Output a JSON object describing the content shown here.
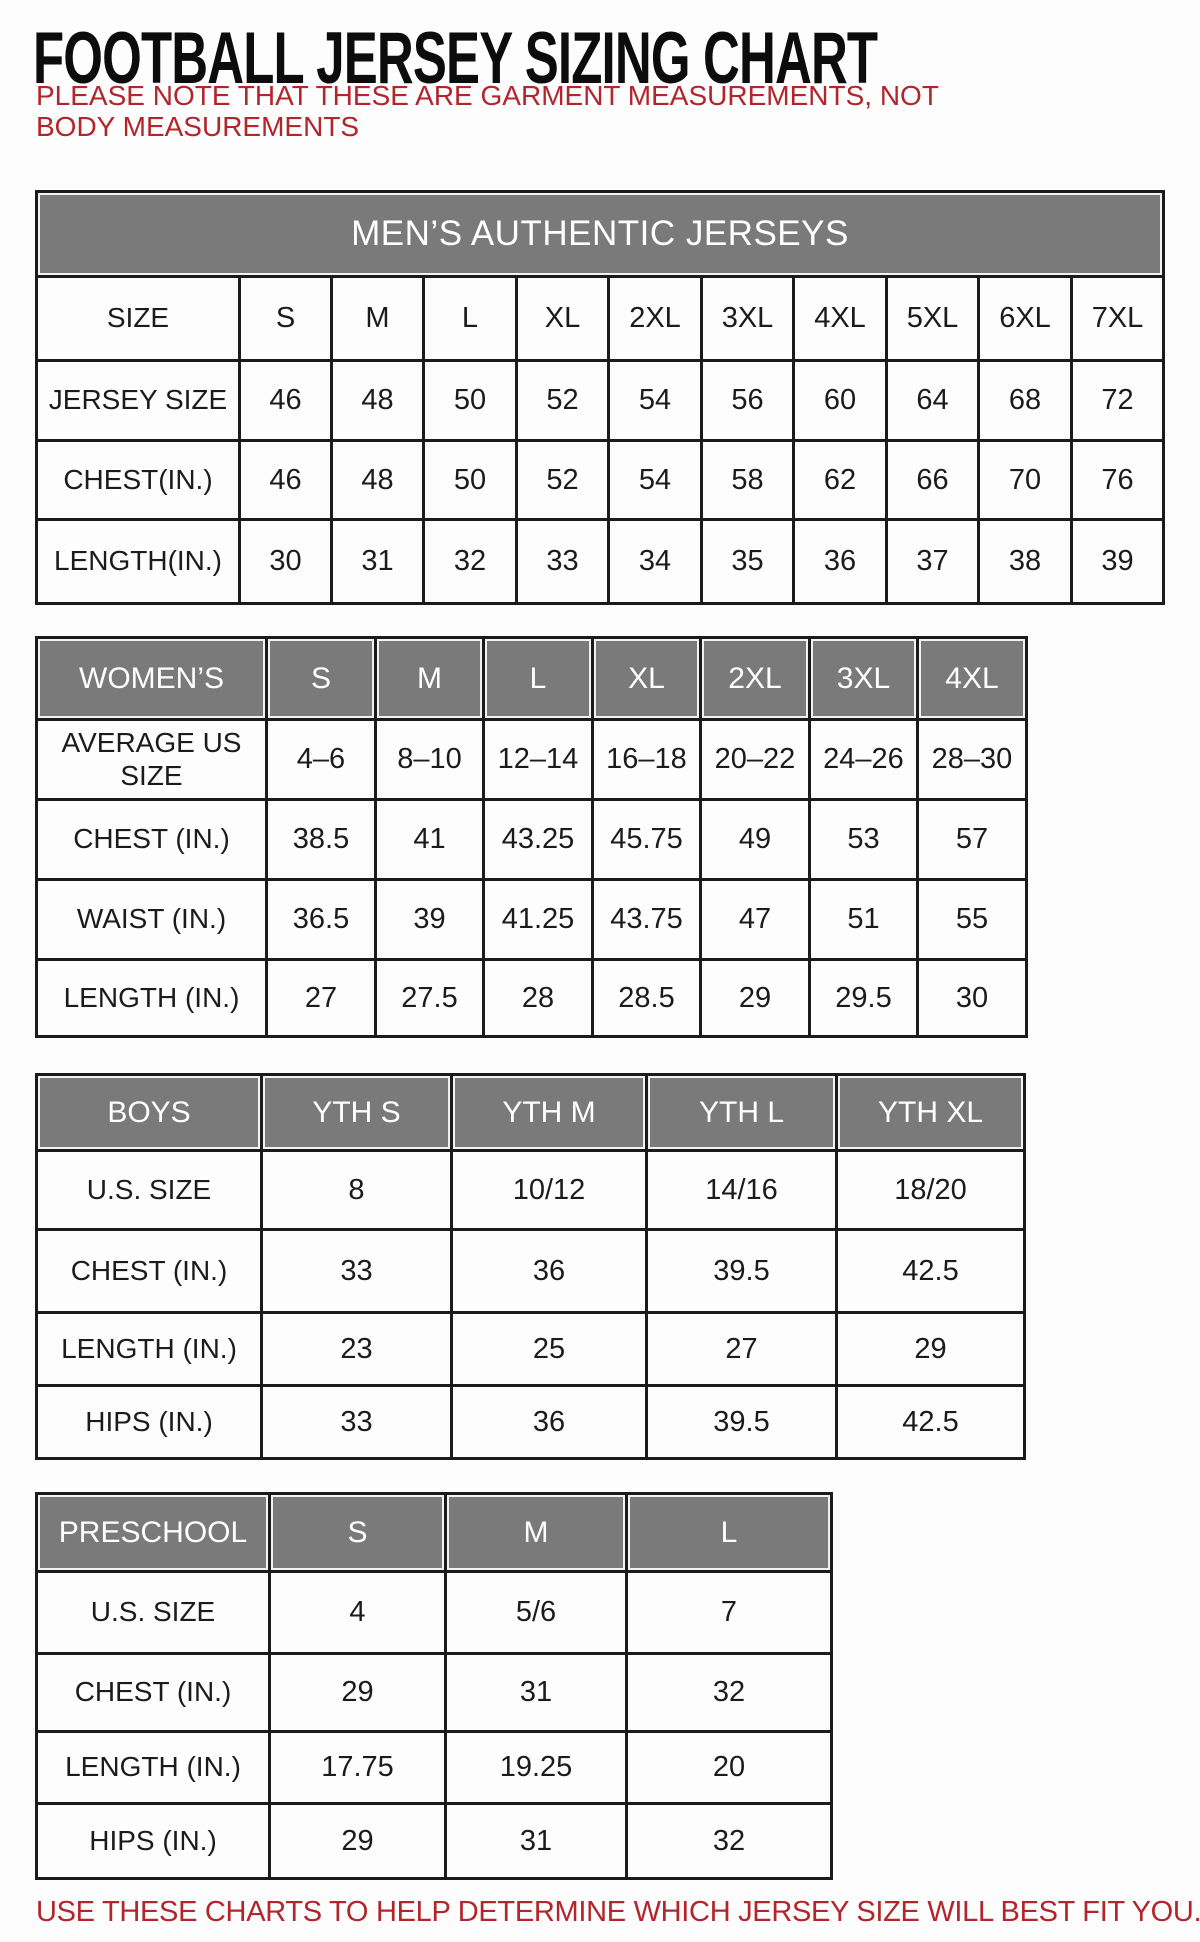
{
  "page": {
    "title": "FOOTBALL JERSEY SIZING CHART",
    "note": "PLEASE NOTE THAT THESE ARE GARMENT MEASUREMENTS, NOT BODY MEASUREMENTS",
    "footer": "USE THESE CHARTS TO HELP DETERMINE WHICH JERSEY SIZE WILL BEST FIT YOU."
  },
  "colors": {
    "header_gray": "#7a7a7a",
    "accent_red": "#b2252b",
    "border_black": "#1b1b1b"
  },
  "tables": {
    "mens": {
      "banner": "MEN’S AUTHENTIC JERSEYS",
      "rows": [
        [
          "SIZE",
          "S",
          "M",
          "L",
          "XL",
          "2XL",
          "3XL",
          "4XL",
          "5XL",
          "6XL",
          "7XL"
        ],
        [
          "JERSEY SIZE",
          "46",
          "48",
          "50",
          "52",
          "54",
          "56",
          "60",
          "64",
          "68",
          "72"
        ],
        [
          "CHEST(IN.)",
          "46",
          "48",
          "50",
          "52",
          "54",
          "58",
          "62",
          "66",
          "70",
          "76"
        ],
        [
          "LENGTH(IN.)",
          "30",
          "31",
          "32",
          "33",
          "34",
          "35",
          "36",
          "37",
          "38",
          "39"
        ]
      ]
    },
    "womens": {
      "header": [
        "WOMEN’S",
        "S",
        "M",
        "L",
        "XL",
        "2XL",
        "3XL",
        "4XL"
      ],
      "rows": [
        [
          "AVERAGE US SIZE",
          "4–6",
          "8–10",
          "12–14",
          "16–18",
          "20–22",
          "24–26",
          "28–30"
        ],
        [
          "CHEST (IN.)",
          "38.5",
          "41",
          "43.25",
          "45.75",
          "49",
          "53",
          "57"
        ],
        [
          "WAIST (IN.)",
          "36.5",
          "39",
          "41.25",
          "43.75",
          "47",
          "51",
          "55"
        ],
        [
          "LENGTH (IN.)",
          "27",
          "27.5",
          "28",
          "28.5",
          "29",
          "29.5",
          "30"
        ]
      ]
    },
    "boys": {
      "header": [
        "BOYS",
        "YTH S",
        "YTH M",
        "YTH L",
        "YTH XL"
      ],
      "rows": [
        [
          "U.S. SIZE",
          "8",
          "10/12",
          "14/16",
          "18/20"
        ],
        [
          "CHEST (IN.)",
          "33",
          "36",
          "39.5",
          "42.5"
        ],
        [
          "LENGTH (IN.)",
          "23",
          "25",
          "27",
          "29"
        ],
        [
          "HIPS (IN.)",
          "33",
          "36",
          "39.5",
          "42.5"
        ]
      ]
    },
    "preschool": {
      "header": [
        "PRESCHOOL",
        "S",
        "M",
        "L"
      ],
      "rows": [
        [
          "U.S. SIZE",
          "4",
          "5/6",
          "7"
        ],
        [
          "CHEST (IN.)",
          "29",
          "31",
          "32"
        ],
        [
          "LENGTH (IN.)",
          "17.75",
          "19.25",
          "20"
        ],
        [
          "HIPS (IN.)",
          "29",
          "31",
          "32"
        ]
      ]
    }
  }
}
